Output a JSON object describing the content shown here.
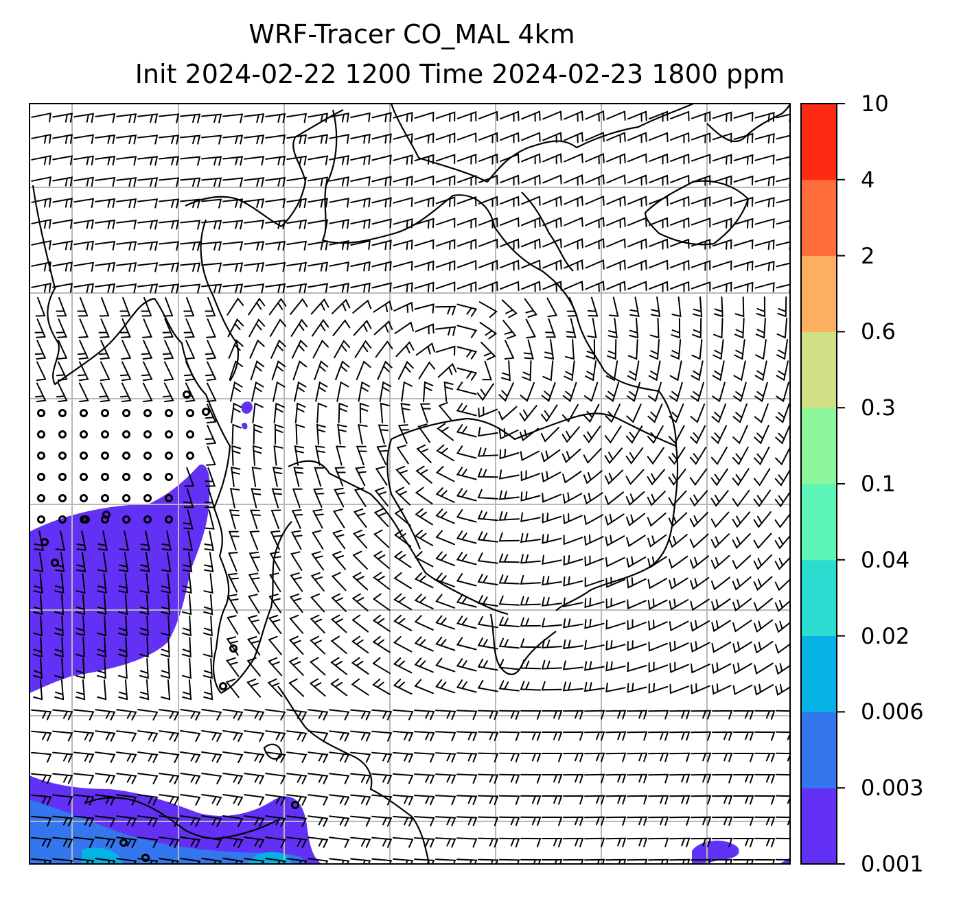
{
  "title": {
    "line1": "WRF-Tracer CO_MAL 4km",
    "line2": "Init 2024-02-22 1200 Time 2024-02-23 1800 ppm"
  },
  "colorbar": {
    "levels": [
      "0.001",
      "0.003",
      "0.006",
      "0.02",
      "0.04",
      "0.1",
      "0.3",
      "0.6",
      "2",
      "4",
      "10"
    ],
    "colors": [
      "#6231f5",
      "#3476ee",
      "#04b2e6",
      "#2cdcd0",
      "#5bf6b8",
      "#8cf89b",
      "#d0df83",
      "#fcaf5f",
      "#ff6e3a",
      "#ff2a14"
    ]
  },
  "map": {
    "background_color": "#ffffff",
    "plume_color": "#6231f5",
    "plume_colors_south": [
      "#3476ee",
      "#04b2e6"
    ],
    "gridline_color": "#b8b8b8",
    "features": [
      "wind-barbs",
      "coastlines",
      "gridlines",
      "co-tracer-plume",
      "calm-circles"
    ]
  }
}
